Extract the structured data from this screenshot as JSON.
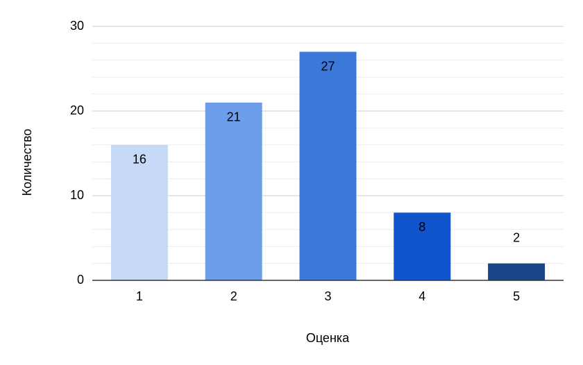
{
  "chart_data": {
    "type": "bar",
    "x_label": "Оценка",
    "y_label": "Количество",
    "categories": [
      "1",
      "2",
      "3",
      "4",
      "5"
    ],
    "values": [
      16,
      21,
      27,
      8,
      2
    ],
    "colors": [
      "#c6daf8",
      "#6d9eeb",
      "#3c78d8",
      "#1155cc",
      "#1c4587"
    ],
    "label_colors": [
      "#000000",
      "#000000",
      "#ffffff",
      "#ffffff",
      "#1c4587"
    ],
    "ylim": [
      0,
      30
    ],
    "yticks": [
      0,
      10,
      20,
      30
    ],
    "minor_yticks": [
      2,
      4,
      6,
      8,
      12,
      14,
      16,
      18,
      22,
      24,
      26,
      28
    ],
    "grid": true
  }
}
